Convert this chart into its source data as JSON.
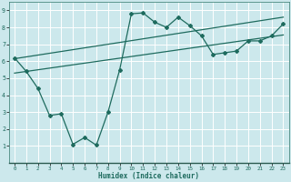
{
  "xlabel": "Humidex (Indice chaleur)",
  "bg_color": "#cce8ec",
  "grid_color": "#ffffff",
  "line_color": "#1e6b5e",
  "xlim": [
    -0.5,
    23.5
  ],
  "ylim": [
    0,
    9.5
  ],
  "xticks": [
    0,
    1,
    2,
    3,
    4,
    5,
    6,
    7,
    8,
    9,
    10,
    11,
    12,
    13,
    14,
    15,
    16,
    17,
    18,
    19,
    20,
    21,
    22,
    23
  ],
  "yticks": [
    1,
    2,
    3,
    4,
    5,
    6,
    7,
    8,
    9
  ],
  "zigzag_x": [
    0,
    1,
    2,
    3,
    4,
    5,
    6,
    7,
    8,
    9,
    10,
    11,
    12,
    13,
    14,
    15,
    16,
    17,
    18,
    19,
    20,
    21,
    22,
    23
  ],
  "zigzag_y": [
    6.2,
    5.4,
    4.4,
    2.8,
    2.9,
    1.1,
    1.5,
    1.05,
    3.0,
    5.5,
    8.8,
    8.85,
    8.3,
    8.0,
    8.6,
    8.1,
    7.5,
    6.4,
    6.5,
    6.6,
    7.2,
    7.2,
    7.5,
    8.2
  ],
  "line1_x": [
    0,
    23
  ],
  "line1_y": [
    5.3,
    7.55
  ],
  "line2_x": [
    0,
    23
  ],
  "line2_y": [
    6.15,
    8.6
  ]
}
